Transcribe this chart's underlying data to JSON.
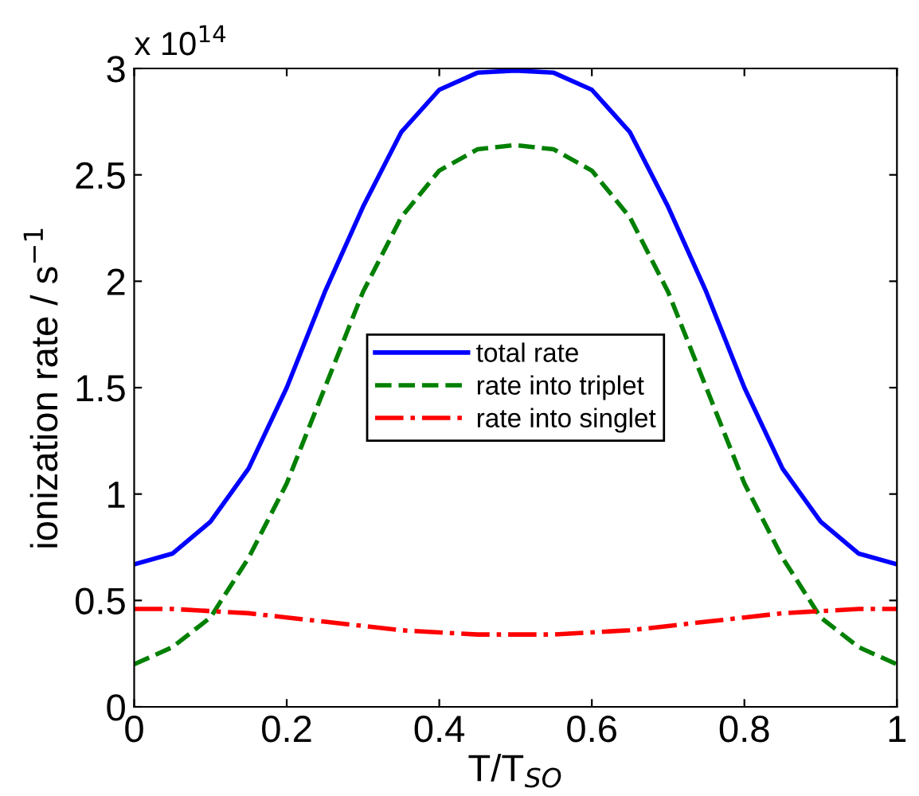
{
  "chart_data": {
    "type": "line",
    "xlabel": "T/T$_{SO}$",
    "ylabel": "ionization rate / s$^{−1}$",
    "annotations": [
      "x 10$^{14}$"
    ],
    "x": [
      0,
      0.05,
      0.1,
      0.15,
      0.2,
      0.25,
      0.3,
      0.35,
      0.4,
      0.45,
      0.5,
      0.55,
      0.6,
      0.65,
      0.7,
      0.75,
      0.8,
      0.85,
      0.9,
      0.95,
      1
    ],
    "series": [
      {
        "name": "total rate",
        "color": "#0000ff",
        "line_style": "solid",
        "values": [
          0.67,
          0.72,
          0.87,
          1.12,
          1.5,
          1.95,
          2.35,
          2.7,
          2.9,
          2.98,
          2.99,
          2.98,
          2.9,
          2.7,
          2.35,
          1.95,
          1.5,
          1.12,
          0.87,
          0.72,
          0.67
        ]
      },
      {
        "name": "rate into triplet",
        "color": "#008000",
        "line_style": "dashed",
        "values": [
          0.2,
          0.28,
          0.42,
          0.7,
          1.05,
          1.5,
          1.95,
          2.3,
          2.52,
          2.62,
          2.64,
          2.62,
          2.52,
          2.3,
          1.95,
          1.5,
          1.05,
          0.7,
          0.42,
          0.28,
          0.2
        ]
      },
      {
        "name": "rate into singlet",
        "color": "#ff0000",
        "line_style": "dashdot",
        "values": [
          0.46,
          0.46,
          0.45,
          0.44,
          0.42,
          0.4,
          0.38,
          0.36,
          0.35,
          0.34,
          0.34,
          0.34,
          0.35,
          0.36,
          0.38,
          0.4,
          0.42,
          0.44,
          0.45,
          0.46,
          0.46
        ]
      }
    ],
    "xlim": [
      0,
      1
    ],
    "xticks": [
      0,
      0.2,
      0.4,
      0.6,
      0.8,
      1
    ],
    "ylim": [
      0,
      3
    ],
    "yticks": [
      0,
      0.5,
      1,
      1.5,
      2,
      2.5,
      3
    ],
    "grid": false,
    "legend": "center"
  }
}
